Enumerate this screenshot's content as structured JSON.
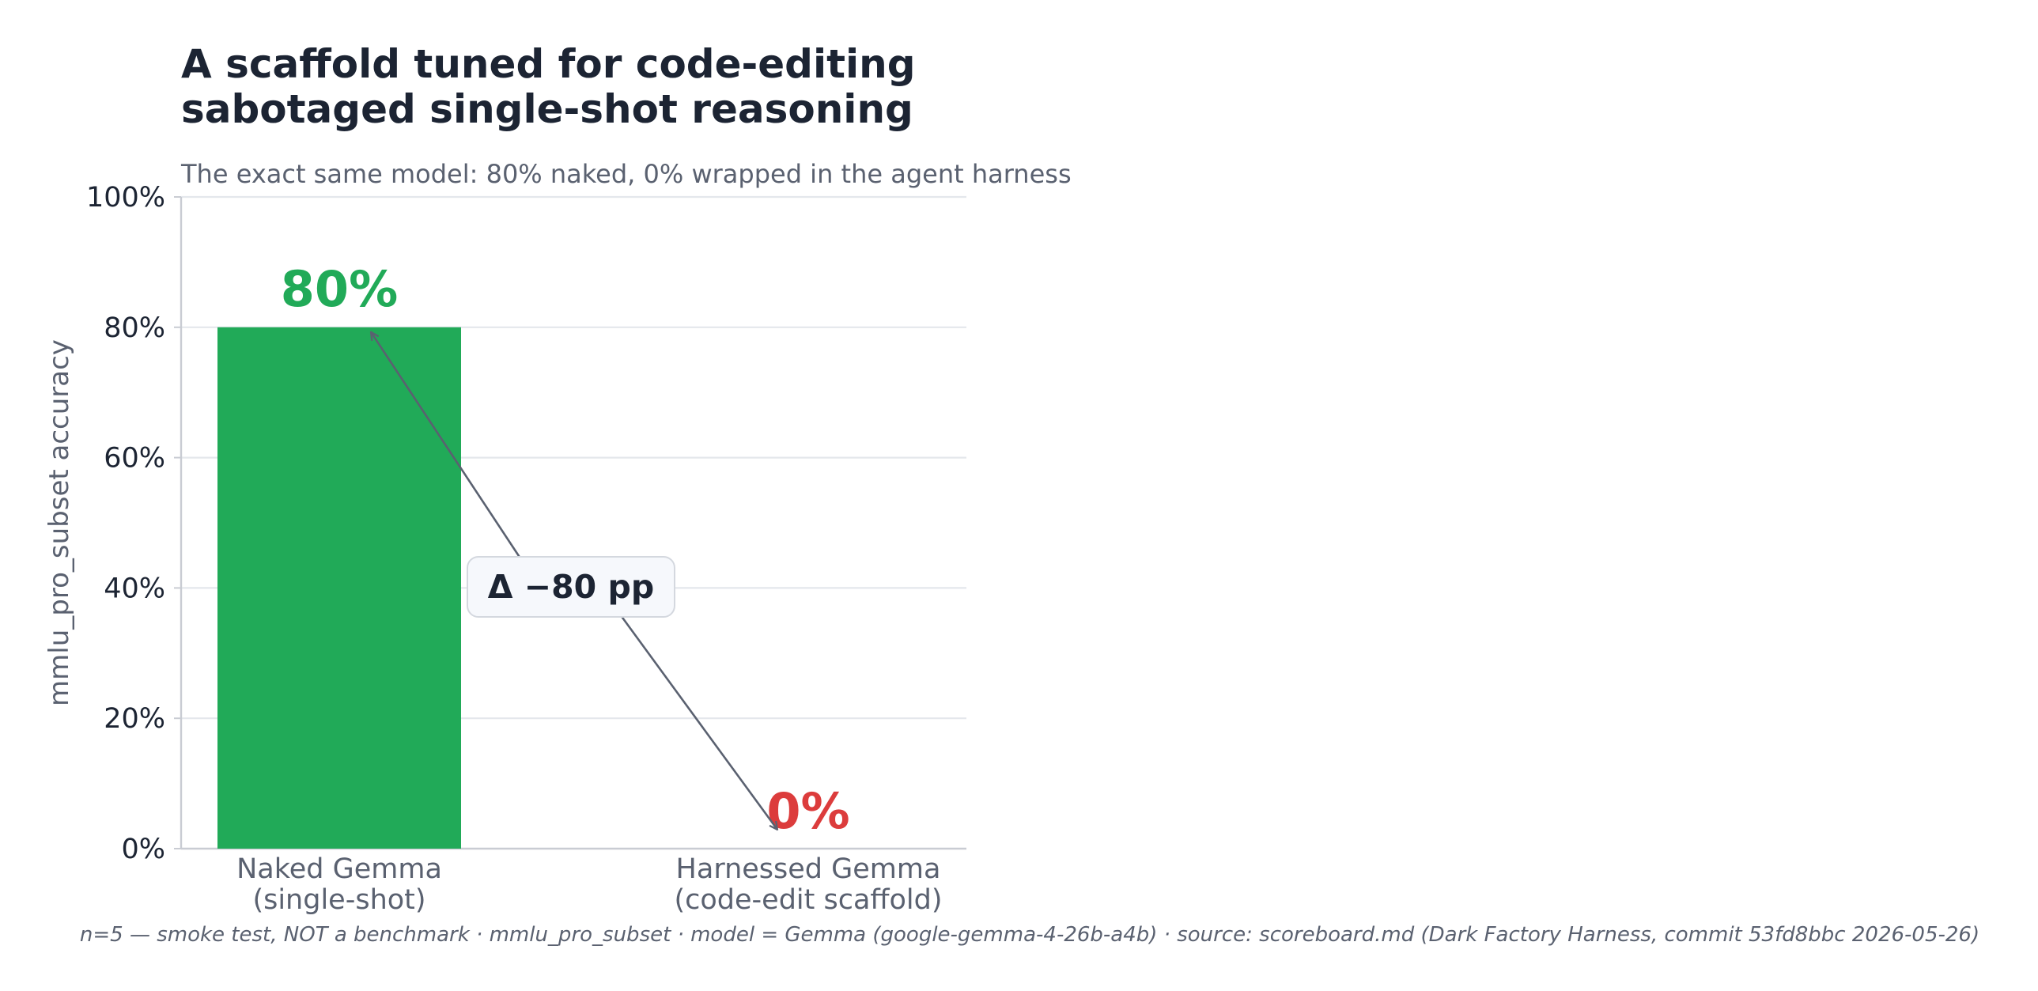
{
  "chart_data": {
    "type": "bar",
    "title": [
      "A scaffold tuned for code-editing",
      "sabotaged single-shot reasoning"
    ],
    "subtitle": "The exact same model: 80% naked, 0% wrapped in the agent harness",
    "ylabel": "mmlu_pro_subset accuracy",
    "xlabel": "",
    "ylim": [
      0,
      100
    ],
    "yticks": [
      0,
      20,
      40,
      60,
      80,
      100
    ],
    "ytick_labels": [
      "0%",
      "20%",
      "40%",
      "60%",
      "80%",
      "100%"
    ],
    "grid": true,
    "categories": [
      [
        "Naked Gemma",
        "(single-shot)"
      ],
      [
        "Harnessed Gemma",
        "(code-edit scaffold)"
      ]
    ],
    "values": [
      80,
      0
    ],
    "value_labels": [
      "80%",
      "0%"
    ],
    "colors": [
      "#21aa58",
      "#dc3c3c"
    ],
    "annotation": {
      "text": "Δ  −80 pp",
      "from": 0,
      "to": 80
    },
    "footnote": "n=5 — smoke test, NOT a benchmark · mmlu_pro_subset · model = Gemma (google-gemma-4-26b-a4b) · source: scoreboard.md (Dark Factory Harness, commit 53fd8bbc 2026-05-26)"
  }
}
